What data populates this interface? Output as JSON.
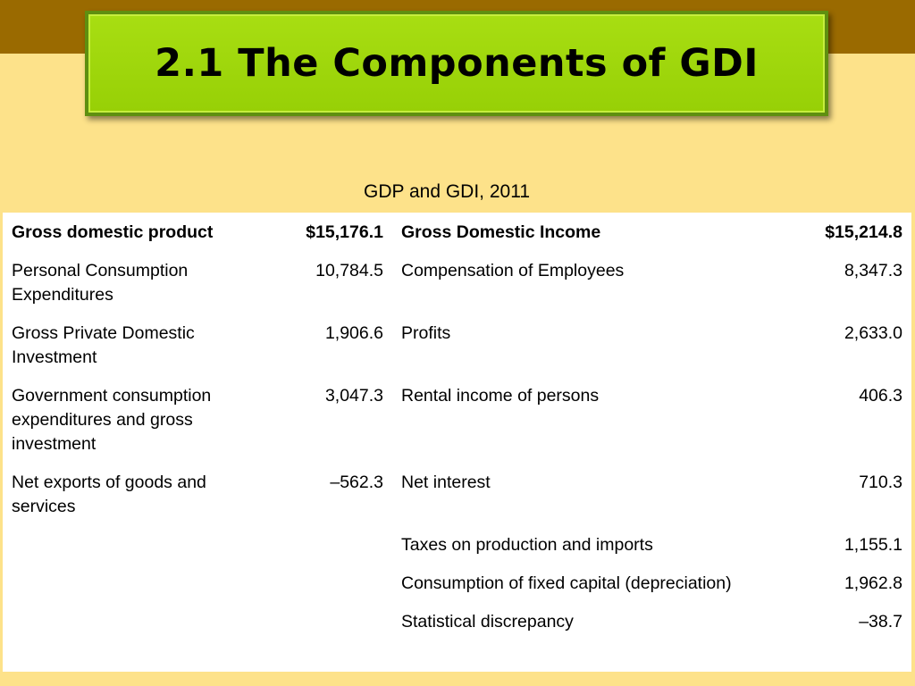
{
  "slide": {
    "title": "2.1 The Components of GDI",
    "subtitle": "GDP and GDI, 2011"
  },
  "table": {
    "header": {
      "gdp_label": "Gross domestic product",
      "gdp_value": "$15,176.1",
      "gdi_label": "Gross Domestic Income",
      "gdi_value": "$15,214.8"
    },
    "rows": [
      {
        "gdp_label": "Personal Consumption Expenditures",
        "gdp_value": "10,784.5",
        "gdi_label": "Compensation of Employees",
        "gdi_value": "8,347.3"
      },
      {
        "gdp_label": "Gross Private Domestic Investment",
        "gdp_value": "1,906.6",
        "gdi_label": "Profits",
        "gdi_value": "2,633.0"
      },
      {
        "gdp_label": "Government consumption expenditures and gross investment",
        "gdp_value": "3,047.3",
        "gdi_label": "Rental income of persons",
        "gdi_value": "406.3"
      },
      {
        "gdp_label": "Net exports of goods and services",
        "gdp_value": "–562.3",
        "gdi_label": "Net interest",
        "gdi_value": "710.3"
      },
      {
        "gdp_label": "",
        "gdp_value": "",
        "gdi_label": "Taxes on production and imports",
        "gdi_value": "1,155.1"
      },
      {
        "gdp_label": "",
        "gdp_value": "",
        "gdi_label": "Consumption of fixed capital (depreciation)",
        "gdi_value": "1,962.8"
      },
      {
        "gdp_label": "",
        "gdp_value": "",
        "gdi_label": "Statistical discrepancy",
        "gdi_value": "–38.7"
      }
    ]
  },
  "colors": {
    "background": "#fde28a",
    "top_band": "#9a6a00",
    "title_box": "#a8de12",
    "title_border": "#5f8f10"
  }
}
